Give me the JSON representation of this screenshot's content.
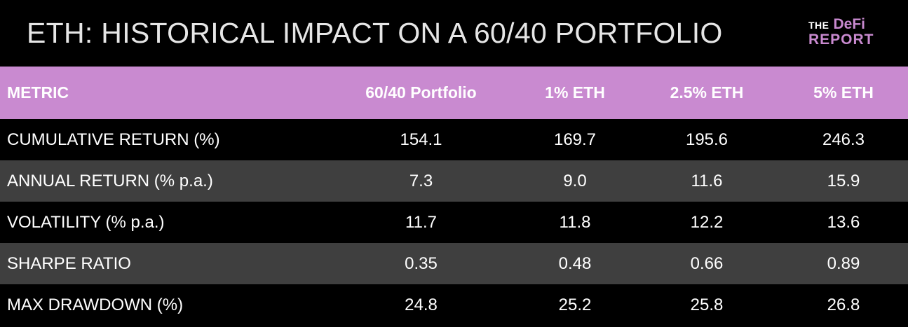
{
  "title": "ETH: HISTORICAL IMPACT ON A 60/40 PORTFOLIO",
  "logo": {
    "line1_small": "THE",
    "line1_large": "DeFi",
    "line2": "REPORT"
  },
  "colors": {
    "background": "#000000",
    "header_row": "#c98ad0",
    "alt_row": "#3f3f3f",
    "text": "#ffffff",
    "brand": "#c98ad0"
  },
  "chart_data": {
    "type": "table",
    "columns": [
      "METRIC",
      "60/40 Portfolio",
      "1% ETH",
      "2.5% ETH",
      "5% ETH"
    ],
    "rows": [
      {
        "metric": "CUMULATIVE RETURN (%)",
        "values": [
          "154.1",
          "169.7",
          "195.6",
          "246.3"
        ]
      },
      {
        "metric": "ANNUAL RETURN (% p.a.)",
        "values": [
          "7.3",
          "9.0",
          "11.6",
          "15.9"
        ]
      },
      {
        "metric": "VOLATILITY (% p.a.)",
        "values": [
          "11.7",
          "11.8",
          "12.2",
          "13.6"
        ]
      },
      {
        "metric": "SHARPE RATIO",
        "values": [
          "0.35",
          "0.48",
          "0.66",
          "0.89"
        ]
      },
      {
        "metric": "MAX DRAWDOWN (%)",
        "values": [
          "24.8",
          "25.2",
          "25.8",
          "26.8"
        ]
      }
    ]
  }
}
